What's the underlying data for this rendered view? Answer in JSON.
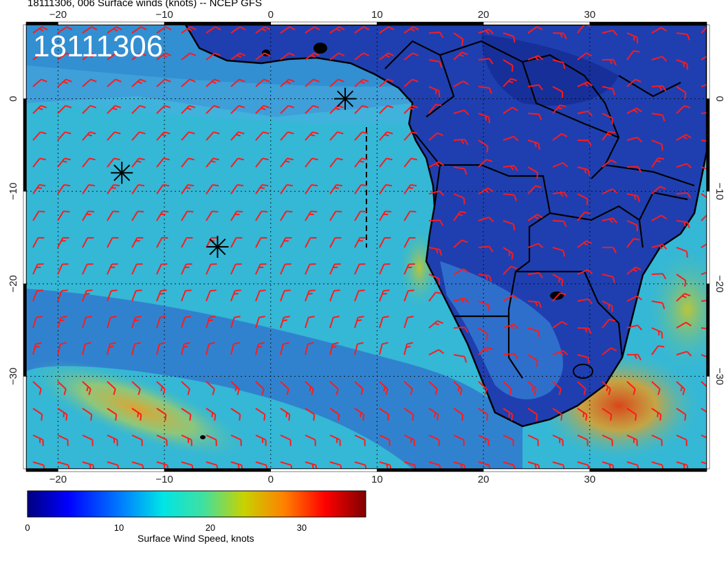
{
  "title": "18111306, 006 Surface winds (knots) -- NCEP GFS",
  "stamp": "18111306",
  "map": {
    "lon_range": [
      -23,
      41
    ],
    "lat_range": [
      8,
      -40
    ],
    "lon_ticks": [
      "−20",
      "−10",
      "0",
      "10",
      "20",
      "30"
    ],
    "lon_tick_values": [
      -20,
      -10,
      0,
      10,
      20,
      30
    ],
    "lat_ticks": [
      "0",
      "−10",
      "−20",
      "−30"
    ],
    "lat_tick_values": [
      0,
      -10,
      -20,
      -30
    ],
    "barb_color": "#ff1a1a",
    "ocean_base_color": "#35b7d6",
    "land_base_color": "#1f3fb0",
    "markers": [
      {
        "name": "marker-star-1",
        "lon": 7,
        "lat": 0
      },
      {
        "name": "marker-star-2",
        "lon": -14,
        "lat": -8
      },
      {
        "name": "marker-star-3",
        "lon": -5,
        "lat": -16
      }
    ]
  },
  "colorbar": {
    "title": "Surface Wind Speed, knots",
    "ticks": [
      "0",
      "10",
      "20",
      "30"
    ],
    "tick_values": [
      0,
      10,
      20,
      30
    ],
    "max": 37,
    "colors": [
      "#000080",
      "#0000ff",
      "#0080ff",
      "#00e5e5",
      "#40e0a0",
      "#c8d200",
      "#ff8000",
      "#ff0000",
      "#800000"
    ]
  }
}
